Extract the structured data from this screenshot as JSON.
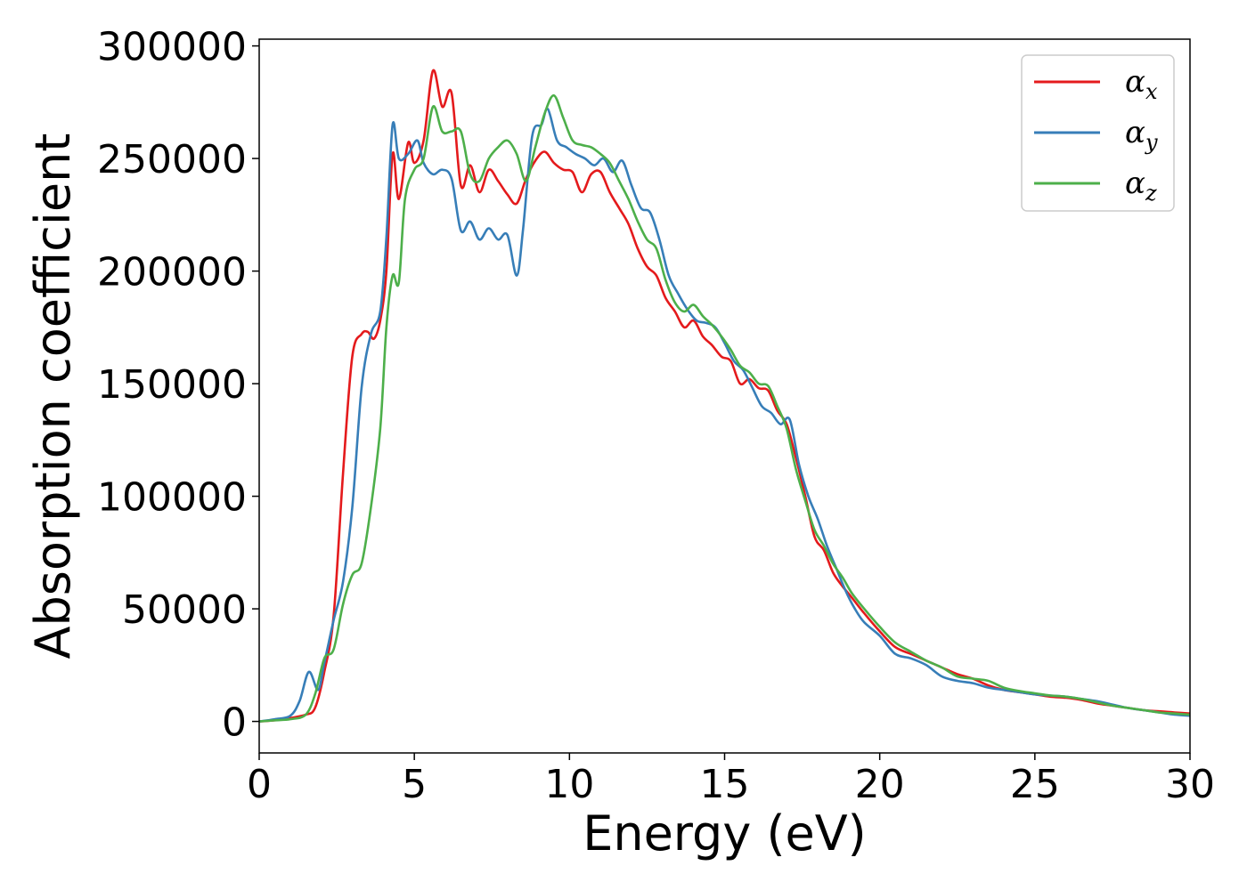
{
  "chart_data": {
    "type": "line",
    "title": "",
    "xlabel": "Energy (eV)",
    "ylabel": "Absorption coefficient",
    "xlim": [
      0,
      30
    ],
    "ylim": [
      -14000,
      303000
    ],
    "xticks": [
      0,
      5,
      10,
      15,
      20,
      25,
      30
    ],
    "yticks": [
      0,
      50000,
      100000,
      150000,
      200000,
      250000,
      300000
    ],
    "xtick_labels": [
      "0",
      "5",
      "10",
      "15",
      "20",
      "25",
      "30"
    ],
    "ytick_labels": [
      "0",
      "50000",
      "100000",
      "150000",
      "200000",
      "250000",
      "300000"
    ],
    "grid": false,
    "legend_position": "top-right",
    "series": [
      {
        "name": "α",
        "subscript": "x",
        "color": "#e41a1c",
        "x": [
          0,
          0.5,
          1,
          1.5,
          1.8,
          2.1,
          2.4,
          2.7,
          3.0,
          3.3,
          3.5,
          3.7,
          3.9,
          4.1,
          4.3,
          4.5,
          4.8,
          5.0,
          5.3,
          5.6,
          5.9,
          6.2,
          6.5,
          6.8,
          7.1,
          7.4,
          7.7,
          8.0,
          8.3,
          8.6,
          8.9,
          9.2,
          9.5,
          9.8,
          10.1,
          10.4,
          10.7,
          11.0,
          11.3,
          11.6,
          11.9,
          12.2,
          12.5,
          12.8,
          13.1,
          13.4,
          13.7,
          14.0,
          14.3,
          14.6,
          14.9,
          15.2,
          15.5,
          15.8,
          16.1,
          16.4,
          16.7,
          17.0,
          17.3,
          17.6,
          17.9,
          18.2,
          18.5,
          18.8,
          19.1,
          19.5,
          20.0,
          20.5,
          21.0,
          21.5,
          22.0,
          22.5,
          23.0,
          23.5,
          24.0,
          24.5,
          25.0,
          25.5,
          26.0,
          26.5,
          27.0,
          27.5,
          28.0,
          28.5,
          29.0,
          29.5,
          30.0
        ],
        "values": [
          0,
          500,
          1500,
          3000,
          6000,
          22000,
          47000,
          110000,
          162000,
          172000,
          173000,
          170000,
          178000,
          200000,
          252000,
          232000,
          257000,
          248000,
          258000,
          289000,
          273000,
          279000,
          238000,
          247000,
          235000,
          245000,
          240000,
          234000,
          230000,
          241000,
          249000,
          253000,
          248000,
          245000,
          244000,
          235000,
          243000,
          244000,
          235000,
          228000,
          221000,
          210000,
          202000,
          198000,
          188000,
          182000,
          175000,
          178000,
          171000,
          167000,
          162000,
          160000,
          150000,
          152000,
          148000,
          147000,
          138000,
          132000,
          117000,
          100000,
          82000,
          76000,
          66000,
          60000,
          55000,
          48000,
          40000,
          33000,
          30000,
          27000,
          24000,
          21000,
          19000,
          16000,
          14000,
          13000,
          12000,
          11000,
          10500,
          9500,
          8000,
          7000,
          6000,
          5000,
          4500,
          4000,
          3500
        ]
      },
      {
        "name": "α",
        "subscript": "y",
        "color": "#377eb8",
        "x": [
          0,
          0.5,
          1,
          1.3,
          1.6,
          1.9,
          2.1,
          2.4,
          2.7,
          3.0,
          3.3,
          3.6,
          3.9,
          4.1,
          4.3,
          4.5,
          4.8,
          5.1,
          5.3,
          5.6,
          5.9,
          6.2,
          6.5,
          6.8,
          7.1,
          7.4,
          7.7,
          8.0,
          8.3,
          8.5,
          8.8,
          9.1,
          9.3,
          9.6,
          9.9,
          10.2,
          10.5,
          10.8,
          11.1,
          11.4,
          11.7,
          12.0,
          12.3,
          12.6,
          12.9,
          13.2,
          13.5,
          13.8,
          14.1,
          14.4,
          14.7,
          15.0,
          15.3,
          15.6,
          15.9,
          16.2,
          16.5,
          16.8,
          17.1,
          17.4,
          17.7,
          18.0,
          18.3,
          18.6,
          18.9,
          19.2,
          19.5,
          20.0,
          20.5,
          21.0,
          21.5,
          22.0,
          22.5,
          23.0,
          23.5,
          24.0,
          24.5,
          25.0,
          25.5,
          26.0,
          26.5,
          27.0,
          27.5,
          28.0,
          28.5,
          29.0,
          29.5,
          30.0
        ],
        "values": [
          0,
          1000,
          2500,
          9000,
          22000,
          14000,
          26000,
          45000,
          62000,
          95000,
          148000,
          172000,
          182000,
          215000,
          265000,
          250000,
          252000,
          258000,
          248000,
          243000,
          245000,
          241000,
          218000,
          222000,
          214000,
          219000,
          214000,
          216000,
          198000,
          218000,
          260000,
          265000,
          272000,
          258000,
          255000,
          252000,
          250000,
          247000,
          250000,
          244000,
          249000,
          238000,
          228000,
          226000,
          214000,
          198000,
          190000,
          183000,
          178000,
          177000,
          175000,
          168000,
          160000,
          156000,
          148000,
          140000,
          137000,
          132000,
          134000,
          114000,
          100000,
          90000,
          78000,
          68000,
          58000,
          50000,
          44000,
          38000,
          30000,
          28000,
          25000,
          20000,
          18000,
          17000,
          15000,
          14000,
          13000,
          12000,
          11500,
          11000,
          10000,
          9000,
          7500,
          6000,
          5000,
          4000,
          3000,
          2500
        ]
      },
      {
        "name": "α",
        "subscript": "z",
        "color": "#4daf4a",
        "x": [
          0,
          0.5,
          1,
          1.5,
          1.8,
          2.1,
          2.4,
          2.7,
          3.0,
          3.3,
          3.6,
          3.9,
          4.1,
          4.3,
          4.5,
          4.7,
          5.0,
          5.3,
          5.6,
          5.9,
          6.2,
          6.5,
          6.8,
          7.1,
          7.4,
          7.7,
          8.0,
          8.3,
          8.6,
          8.9,
          9.2,
          9.5,
          9.8,
          10.1,
          10.4,
          10.7,
          11.0,
          11.3,
          11.6,
          11.9,
          12.2,
          12.5,
          12.8,
          13.1,
          13.4,
          13.7,
          14.0,
          14.3,
          14.6,
          14.9,
          15.2,
          15.5,
          15.8,
          16.1,
          16.4,
          16.7,
          17.0,
          17.3,
          17.6,
          17.9,
          18.2,
          18.5,
          18.8,
          19.1,
          19.5,
          20.0,
          20.5,
          21.0,
          21.5,
          22.0,
          22.5,
          23.0,
          23.5,
          24.0,
          24.5,
          25.0,
          25.5,
          26.0,
          26.5,
          27.0,
          27.5,
          28.0,
          28.5,
          29.0,
          29.5,
          30.0
        ],
        "values": [
          0,
          500,
          1000,
          3000,
          12000,
          28000,
          32000,
          52000,
          65000,
          70000,
          95000,
          130000,
          175000,
          198000,
          195000,
          232000,
          245000,
          250000,
          273000,
          262000,
          262000,
          262000,
          243000,
          240000,
          250000,
          255000,
          258000,
          252000,
          240000,
          255000,
          270000,
          278000,
          268000,
          258000,
          256000,
          255000,
          252000,
          248000,
          240000,
          232000,
          222000,
          214000,
          210000,
          196000,
          186000,
          182000,
          185000,
          180000,
          176000,
          171000,
          165000,
          158000,
          155000,
          150000,
          149000,
          140000,
          130000,
          112000,
          98000,
          85000,
          78000,
          70000,
          64000,
          57000,
          50000,
          42000,
          35000,
          31000,
          27000,
          24000,
          20000,
          19000,
          18000,
          15000,
          13500,
          12500,
          11500,
          11000,
          10000,
          8500,
          7000,
          6000,
          5000,
          4000,
          3500,
          3000
        ]
      }
    ]
  }
}
